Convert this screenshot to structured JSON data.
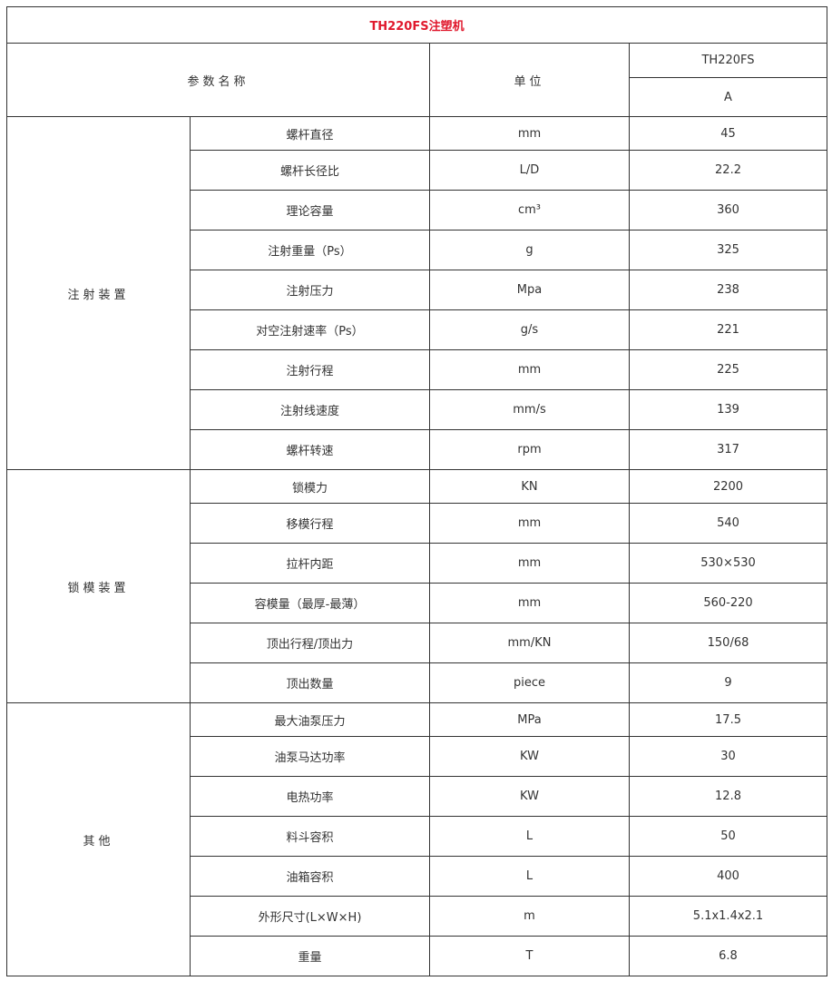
{
  "title": "TH220FS注塑机",
  "header": {
    "param_name": "参数名称",
    "unit": "单位",
    "model": "TH220FS",
    "variant": "A"
  },
  "title_color": "#e0192d",
  "groups": [
    {
      "name": "注射装置",
      "rows": [
        {
          "param": "螺杆直径",
          "unit": "mm",
          "value": "45"
        },
        {
          "param": "螺杆长径比",
          "unit": "L/D",
          "value": "22.2"
        },
        {
          "param": "理论容量",
          "unit": "cm³",
          "value": "360"
        },
        {
          "param": "注射重量（Ps）",
          "unit": "g",
          "value": "325"
        },
        {
          "param": "注射压力",
          "unit": "Mpa",
          "value": "238"
        },
        {
          "param": "对空注射速率（Ps）",
          "unit": "g/s",
          "value": "221"
        },
        {
          "param": "注射行程",
          "unit": "mm",
          "value": "225"
        },
        {
          "param": "注射线速度",
          "unit": "mm/s",
          "value": "139"
        },
        {
          "param": "螺杆转速",
          "unit": "rpm",
          "value": "317"
        }
      ]
    },
    {
      "name": "锁模装置",
      "rows": [
        {
          "param": "锁模力",
          "unit": "KN",
          "value": "2200"
        },
        {
          "param": "移模行程",
          "unit": "mm",
          "value": "540"
        },
        {
          "param": "拉杆内距",
          "unit": "mm",
          "value": "530×530"
        },
        {
          "param": "容模量（最厚-最薄）",
          "unit": "mm",
          "value": "560-220"
        },
        {
          "param": "顶出行程/顶出力",
          "unit": "mm/KN",
          "value": "150/68"
        },
        {
          "param": "顶出数量",
          "unit": "piece",
          "value": "9"
        }
      ]
    },
    {
      "name": "其他",
      "rows": [
        {
          "param": "最大油泵压力",
          "unit": "MPa",
          "value": "17.5"
        },
        {
          "param": "油泵马达功率",
          "unit": "KW",
          "value": "30"
        },
        {
          "param": "电热功率",
          "unit": "KW",
          "value": "12.8"
        },
        {
          "param": "料斗容积",
          "unit": "L",
          "value": "50"
        },
        {
          "param": "油箱容积",
          "unit": "L",
          "value": "400"
        },
        {
          "param": "外形尺寸(L×W×H)",
          "unit": "m",
          "value": "5.1x1.4x2.1"
        },
        {
          "param": "重量",
          "unit": "T",
          "value": "6.8"
        }
      ]
    }
  ]
}
